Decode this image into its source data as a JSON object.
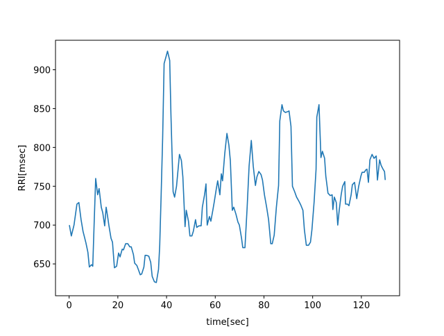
{
  "chart_data": {
    "type": "line",
    "xlabel": "time[sec]",
    "ylabel": "RRI[msec]",
    "color": "#1f77b4",
    "x": [
      0.1,
      0.9,
      2.0,
      3.2,
      4.0,
      4.9,
      5.7,
      6.9,
      7.7,
      8.3,
      9.2,
      9.7,
      10.3,
      10.9,
      11.7,
      12.3,
      13.2,
      13.8,
      14.6,
      15.2,
      15.8,
      16.3,
      17.2,
      17.8,
      18.6,
      19.5,
      20.3,
      20.9,
      21.8,
      22.3,
      23.2,
      24.1,
      24.9,
      25.5,
      26.4,
      26.9,
      27.8,
      28.4,
      29.2,
      29.8,
      30.7,
      31.2,
      31.8,
      32.7,
      33.5,
      34.1,
      35.0,
      35.8,
      36.7,
      37.2,
      37.8,
      38.4,
      39.0,
      39.8,
      40.4,
      41.3,
      41.8,
      42.7,
      43.3,
      44.1,
      45.3,
      46.1,
      46.7,
      47.6,
      48.1,
      49.0,
      49.6,
      50.4,
      51.0,
      51.9,
      52.4,
      53.3,
      54.2,
      54.7,
      55.6,
      56.2,
      56.7,
      57.6,
      58.2,
      59.0,
      59.6,
      60.5,
      61.0,
      61.9,
      62.5,
      63.0,
      63.9,
      64.8,
      65.6,
      66.2,
      67.0,
      67.6,
      68.5,
      69.3,
      69.9,
      70.8,
      71.3,
      72.2,
      73.1,
      73.9,
      74.8,
      75.6,
      76.5,
      77.1,
      77.9,
      78.8,
      79.4,
      80.2,
      81.1,
      81.9,
      82.8,
      83.4,
      84.2,
      85.1,
      86.0,
      86.5,
      87.4,
      88.0,
      88.8,
      89.7,
      90.3,
      91.1,
      91.7,
      92.6,
      93.4,
      94.3,
      95.1,
      96.0,
      96.6,
      97.4,
      98.3,
      99.1,
      99.7,
      100.6,
      101.4,
      101.7,
      102.6,
      103.4,
      104.0,
      104.9,
      105.4,
      106.3,
      107.2,
      108.0,
      108.3,
      108.9,
      109.7,
      110.3,
      110.9,
      111.7,
      112.3,
      113.2,
      113.5,
      114.3,
      114.9,
      115.8,
      116.3,
      117.2,
      118.1,
      118.9,
      119.8,
      120.3,
      121.2,
      121.8,
      122.3,
      122.9,
      123.5,
      124.4,
      125.2,
      126.1,
      126.6,
      127.5,
      128.1,
      128.9,
      129.5,
      129.8
    ],
    "values": [
      700,
      686,
      700,
      727,
      729,
      707,
      692,
      677,
      665,
      646,
      649,
      647,
      705,
      760,
      739,
      747,
      723,
      716,
      699,
      723,
      711,
      700,
      683,
      678,
      645,
      647,
      664,
      659,
      669,
      668,
      676,
      676,
      672,
      672,
      662,
      651,
      648,
      643,
      636,
      637,
      646,
      661,
      661,
      660,
      652,
      634,
      627,
      626,
      643,
      674,
      741,
      812,
      908,
      917,
      924,
      912,
      843,
      743,
      736,
      750,
      791,
      783,
      762,
      698,
      719,
      705,
      686,
      686,
      692,
      707,
      697,
      699,
      699,
      723,
      739,
      753,
      700,
      711,
      705,
      719,
      730,
      748,
      757,
      739,
      766,
      757,
      792,
      818,
      803,
      783,
      719,
      723,
      714,
      704,
      700,
      683,
      671,
      671,
      723,
      776,
      809,
      776,
      751,
      762,
      769,
      765,
      758,
      739,
      723,
      707,
      676,
      676,
      687,
      723,
      751,
      834,
      855,
      847,
      845,
      846,
      847,
      827,
      750,
      743,
      736,
      731,
      726,
      719,
      694,
      674,
      674,
      678,
      694,
      730,
      772,
      839,
      855,
      787,
      795,
      786,
      763,
      741,
      738,
      739,
      720,
      736,
      729,
      700,
      719,
      739,
      750,
      756,
      727,
      727,
      725,
      739,
      752,
      755,
      734,
      750,
      763,
      768,
      768,
      771,
      772,
      755,
      784,
      791,
      786,
      789,
      758,
      784,
      777,
      772,
      769,
      758
    ],
    "xlim": [
      -5.6,
      135.7
    ],
    "ylim": [
      609,
      938
    ],
    "xticks": [
      0,
      20,
      40,
      60,
      80,
      100,
      120
    ],
    "yticks": [
      650,
      700,
      750,
      800,
      850,
      900
    ]
  }
}
